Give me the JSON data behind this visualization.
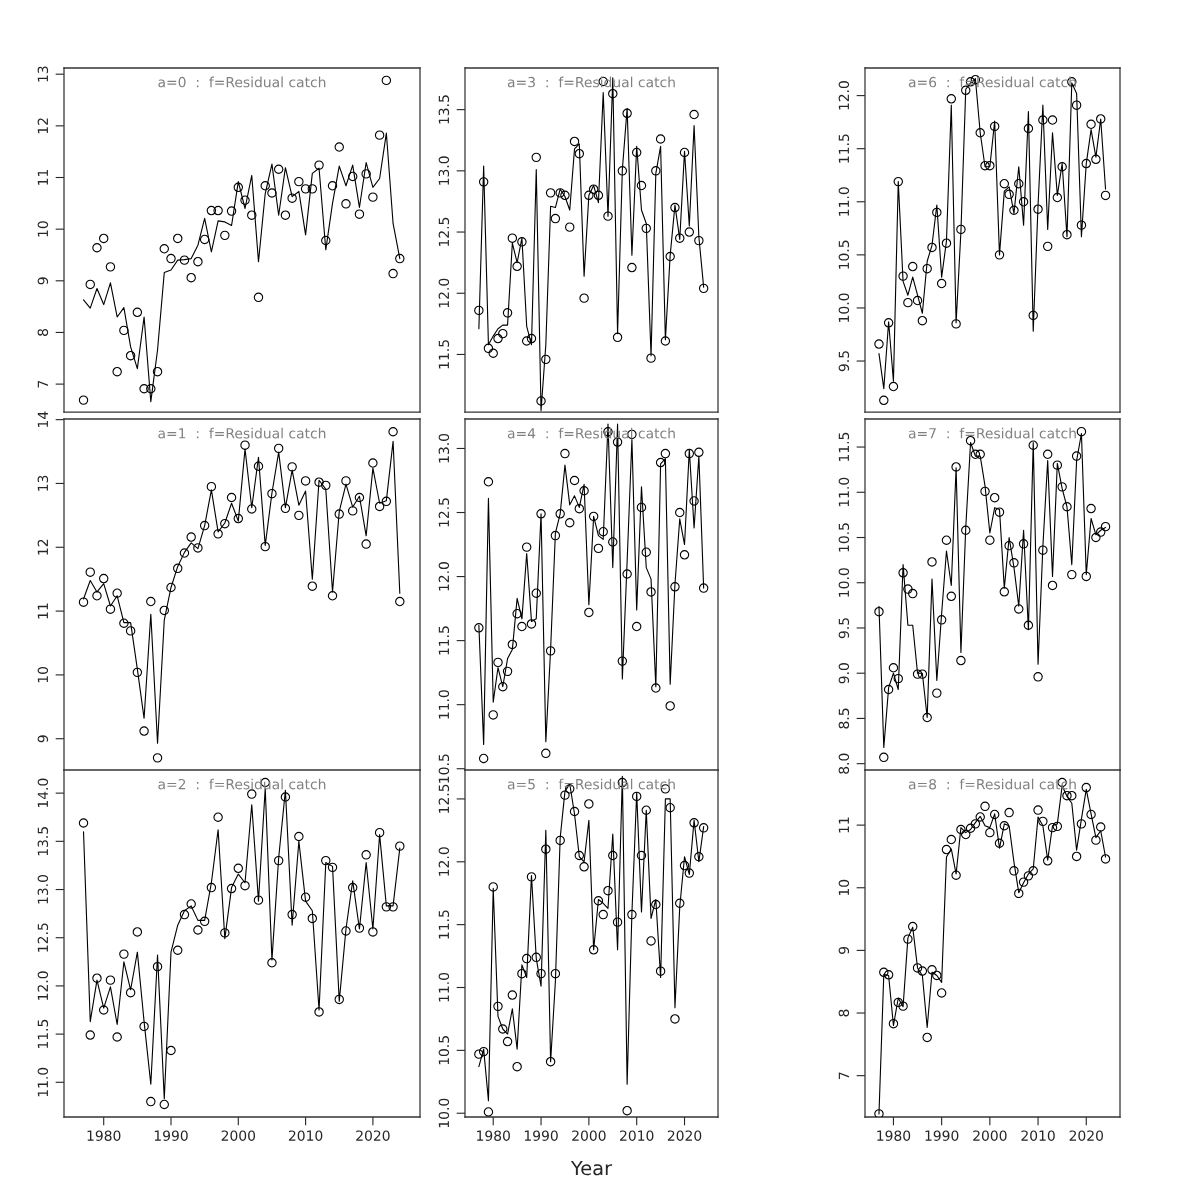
{
  "chart_data": [
    {
      "type": "line",
      "title": "a=0  :  f=Residual catch",
      "tick_labels": "y",
      "x": [
        1977,
        1978,
        1979,
        1980,
        1981,
        1982,
        1983,
        1984,
        1985,
        1986,
        1987,
        1988,
        1989,
        1990,
        1991,
        1992,
        1993,
        1994,
        1995,
        1996,
        1997,
        1998,
        1999,
        2000,
        2001,
        2002,
        2003,
        2004,
        2005,
        2006,
        2007,
        2008,
        2009,
        2010,
        2011,
        2012,
        2013,
        2014,
        2015,
        2016,
        2017,
        2018,
        2019,
        2020,
        2021,
        2022,
        2023,
        2024
      ],
      "xlim": [
        1974.1,
        2027.0
      ],
      "xticks": [
        1980,
        1990,
        2000,
        2010,
        2020
      ],
      "ylim": [
        6.46,
        13.12
      ],
      "yticks": [
        7,
        8,
        9,
        10,
        11,
        12,
        13
      ],
      "series": [
        {
          "type": "scatter",
          "marker": "circle",
          "color": "#000000",
          "values": [
            6.69,
            8.93,
            9.64,
            9.82,
            9.27,
            7.24,
            8.04,
            7.55,
            8.39,
            6.91,
            6.91,
            7.24,
            9.62,
            9.43,
            9.82,
            9.4,
            9.06,
            9.37,
            9.8,
            10.36,
            10.36,
            9.88,
            10.35,
            10.81,
            10.56,
            10.27,
            8.68,
            10.84,
            10.7,
            11.16,
            10.27,
            10.6,
            10.92,
            10.78,
            10.78,
            11.24,
            9.78,
            10.84,
            11.59,
            10.49,
            11.02,
            10.29,
            11.07,
            10.62,
            11.82,
            12.88,
            9.14,
            9.43
          ]
        },
        {
          "type": "line",
          "line_style": "solid",
          "color": "#000000",
          "values": [
            8.63,
            8.47,
            8.85,
            8.54,
            8.96,
            8.3,
            8.48,
            7.72,
            7.3,
            8.3,
            6.66,
            7.66,
            9.16,
            9.21,
            9.4,
            9.41,
            9.43,
            9.69,
            10.21,
            9.56,
            10.16,
            10.14,
            10.07,
            10.92,
            10.4,
            11.04,
            9.37,
            10.69,
            11.26,
            10.27,
            11.19,
            10.63,
            10.73,
            9.89,
            11.08,
            11.18,
            9.6,
            10.5,
            11.22,
            10.84,
            11.24,
            10.42,
            11.29,
            10.81,
            10.98,
            11.86,
            10.11,
            9.43
          ]
        }
      ]
    },
    {
      "type": "line",
      "title": "a=1  :  f=Residual catch",
      "tick_labels": "y",
      "x": [
        1977,
        1978,
        1979,
        1980,
        1981,
        1982,
        1983,
        1984,
        1985,
        1986,
        1987,
        1988,
        1989,
        1990,
        1991,
        1992,
        1993,
        1994,
        1995,
        1996,
        1997,
        1998,
        1999,
        2000,
        2001,
        2002,
        2003,
        2004,
        2005,
        2006,
        2007,
        2008,
        2009,
        2010,
        2011,
        2012,
        2013,
        2014,
        2015,
        2016,
        2017,
        2018,
        2019,
        2020,
        2021,
        2022,
        2023,
        2024
      ],
      "xlim": [
        1974.1,
        2027.0
      ],
      "xticks": [
        1980,
        1990,
        2000,
        2010,
        2020
      ],
      "ylim": [
        8.51,
        14.01
      ],
      "yticks": [
        9,
        10,
        11,
        12,
        13,
        14
      ],
      "series": [
        {
          "type": "scatter",
          "marker": "circle",
          "color": "#000000",
          "values": [
            11.14,
            11.61,
            11.24,
            11.51,
            11.03,
            11.28,
            10.81,
            10.69,
            10.04,
            9.12,
            11.15,
            8.7,
            11.01,
            11.37,
            11.67,
            11.91,
            12.16,
            11.99,
            12.34,
            12.95,
            12.21,
            12.37,
            12.78,
            12.45,
            13.6,
            12.6,
            13.27,
            12.01,
            12.84,
            13.55,
            12.61,
            13.26,
            12.5,
            13.04,
            11.39,
            13.02,
            12.97,
            11.24,
            12.52,
            13.04,
            12.57,
            12.78,
            12.05,
            13.32,
            12.64,
            12.72,
            13.81,
            11.15
          ]
        },
        {
          "type": "line",
          "line_style": "solid",
          "color": "#000000",
          "values": [
            11.19,
            11.48,
            11.3,
            11.43,
            11.08,
            11.24,
            10.82,
            10.82,
            10.09,
            9.32,
            10.95,
            8.93,
            10.86,
            11.37,
            11.7,
            11.92,
            12.07,
            11.98,
            12.34,
            12.9,
            12.24,
            12.38,
            12.69,
            12.41,
            13.54,
            12.62,
            13.41,
            12.03,
            12.85,
            13.49,
            12.62,
            13.21,
            12.66,
            12.88,
            11.5,
            13.05,
            12.91,
            11.3,
            12.56,
            12.99,
            12.63,
            12.8,
            12.18,
            13.24,
            12.69,
            12.73,
            13.66,
            11.28
          ]
        }
      ]
    },
    {
      "type": "line",
      "title": "a=2  :  f=Residual catch",
      "x": [
        1977,
        1978,
        1979,
        1980,
        1981,
        1982,
        1983,
        1984,
        1985,
        1986,
        1987,
        1988,
        1989,
        1990,
        1991,
        1992,
        1993,
        1994,
        1995,
        1996,
        1997,
        1998,
        1999,
        2000,
        2001,
        2002,
        2003,
        2004,
        2005,
        2006,
        2007,
        2008,
        2009,
        2010,
        2011,
        2012,
        2013,
        2014,
        2015,
        2016,
        2017,
        2018,
        2019,
        2020,
        2021,
        2022,
        2023,
        2024
      ],
      "xlim": [
        1974.1,
        2027.0
      ],
      "xticks": [
        1980,
        1990,
        2000,
        2010,
        2020
      ],
      "ylim": [
        10.64,
        14.24
      ],
      "yticks": [
        {
          "value": 11,
          "label": "11.0"
        },
        11.5,
        {
          "value": 12,
          "label": "12.0"
        },
        12.5,
        {
          "value": 13,
          "label": "13.0"
        },
        13.5,
        {
          "value": 14,
          "label": "14.0"
        }
      ],
      "series": [
        {
          "type": "scatter",
          "marker": "circle",
          "color": "#000000",
          "values": [
            13.69,
            11.49,
            12.08,
            11.75,
            12.06,
            11.47,
            12.33,
            11.93,
            12.56,
            11.58,
            10.8,
            12.2,
            10.77,
            11.33,
            12.37,
            12.74,
            12.85,
            12.58,
            12.67,
            13.02,
            13.75,
            12.55,
            13.01,
            13.22,
            13.04,
            13.99,
            12.89,
            14.11,
            12.24,
            13.3,
            13.96,
            12.74,
            13.55,
            12.92,
            12.7,
            11.73,
            13.3,
            13.23,
            11.86,
            12.57,
            13.02,
            12.6,
            13.36,
            12.56,
            13.59,
            12.82,
            12.82,
            13.45
          ]
        },
        {
          "type": "line",
          "line_style": "solid",
          "color": "#000000",
          "values": [
            13.6,
            11.63,
            12.06,
            11.77,
            11.99,
            11.6,
            12.25,
            11.96,
            12.35,
            11.63,
            10.98,
            12.32,
            10.83,
            12.35,
            12.63,
            12.78,
            12.83,
            12.68,
            12.68,
            13.07,
            13.62,
            12.49,
            13.02,
            13.16,
            13.07,
            13.88,
            12.88,
            14.05,
            12.27,
            13.33,
            14.03,
            12.63,
            13.5,
            12.88,
            12.78,
            11.75,
            13.28,
            13.24,
            11.84,
            12.59,
            13.09,
            12.59,
            13.28,
            12.59,
            13.57,
            12.83,
            12.83,
            13.43
          ]
        }
      ]
    },
    {
      "type": "line",
      "title": "a=3  :  f=Residual catch",
      "tick_labels": "y",
      "x": [
        1977,
        1978,
        1979,
        1980,
        1981,
        1982,
        1983,
        1984,
        1985,
        1986,
        1987,
        1988,
        1989,
        1990,
        1991,
        1992,
        1993,
        1994,
        1995,
        1996,
        1997,
        1998,
        1999,
        2000,
        2001,
        2002,
        2003,
        2004,
        2005,
        2006,
        2007,
        2008,
        2009,
        2010,
        2011,
        2012,
        2013,
        2014,
        2015,
        2016,
        2017,
        2018,
        2019,
        2020,
        2021,
        2022,
        2023,
        2024
      ],
      "xlim": [
        1974.1,
        2027.0
      ],
      "xticks": [
        1980,
        1990,
        2000,
        2010,
        2020
      ],
      "ylim": [
        11.03,
        13.84
      ],
      "yticks": [
        11.5,
        {
          "value": 12,
          "label": "12.0"
        },
        12.5,
        {
          "value": 13,
          "label": "13.0"
        },
        13.5
      ],
      "series": [
        {
          "type": "scatter",
          "marker": "circle",
          "color": "#000000",
          "values": [
            11.86,
            12.91,
            11.55,
            11.51,
            11.63,
            11.67,
            11.84,
            12.45,
            12.22,
            12.42,
            11.61,
            11.63,
            13.11,
            11.12,
            11.46,
            12.82,
            12.61,
            12.82,
            12.8,
            12.54,
            13.24,
            13.14,
            11.96,
            12.8,
            12.85,
            12.8,
            13.73,
            12.63,
            13.63,
            11.64,
            13.0,
            13.47,
            12.21,
            13.15,
            12.88,
            12.53,
            11.47,
            13.0,
            13.26,
            11.61,
            12.3,
            12.7,
            12.45,
            13.15,
            12.5,
            13.46,
            12.43,
            12.04
          ]
        },
        {
          "type": "line",
          "line_style": "solid",
          "color": "#000000",
          "values": [
            11.71,
            13.04,
            11.58,
            11.65,
            11.71,
            11.74,
            11.74,
            12.41,
            12.25,
            12.45,
            11.73,
            11.58,
            13.01,
            11.04,
            11.58,
            12.71,
            12.7,
            12.85,
            12.79,
            12.68,
            13.18,
            13.22,
            12.14,
            12.8,
            12.88,
            12.74,
            13.64,
            12.63,
            13.76,
            11.67,
            13.01,
            13.51,
            12.31,
            13.2,
            12.68,
            12.57,
            11.49,
            12.98,
            13.2,
            11.62,
            12.31,
            12.72,
            12.44,
            13.16,
            12.55,
            13.37,
            12.46,
            12.05
          ]
        }
      ]
    },
    {
      "type": "line",
      "title": "a=4  :  f=Residual catch",
      "tick_labels": "y",
      "x": [
        1977,
        1978,
        1979,
        1980,
        1981,
        1982,
        1983,
        1984,
        1985,
        1986,
        1987,
        1988,
        1989,
        1990,
        1991,
        1992,
        1993,
        1994,
        1995,
        1996,
        1997,
        1998,
        1999,
        2000,
        2001,
        2002,
        2003,
        2004,
        2005,
        2006,
        2007,
        2008,
        2009,
        2010,
        2011,
        2012,
        2013,
        2014,
        2015,
        2016,
        2017,
        2018,
        2019,
        2020,
        2021,
        2022,
        2023,
        2024
      ],
      "xlim": [
        1974.1,
        2027.0
      ],
      "xticks": [
        1980,
        1990,
        2000,
        2010,
        2020
      ],
      "ylim": [
        10.49,
        13.23
      ],
      "yticks": [
        10.5,
        {
          "value": 11,
          "label": "11.0"
        },
        11.5,
        {
          "value": 12,
          "label": "12.0"
        },
        12.5,
        {
          "value": 13,
          "label": "13.0"
        }
      ],
      "series": [
        {
          "type": "scatter",
          "marker": "circle",
          "color": "#000000",
          "values": [
            11.6,
            10.58,
            12.74,
            10.92,
            11.33,
            11.14,
            11.26,
            11.47,
            11.71,
            11.61,
            12.23,
            11.63,
            11.87,
            12.49,
            10.62,
            11.42,
            12.32,
            12.49,
            12.96,
            12.42,
            12.75,
            12.53,
            12.67,
            11.72,
            12.47,
            12.22,
            12.35,
            13.13,
            12.27,
            13.05,
            11.34,
            12.02,
            13.11,
            11.61,
            12.54,
            12.19,
            11.88,
            11.13,
            12.89,
            12.96,
            10.99,
            11.92,
            12.5,
            12.17,
            12.96,
            12.59,
            12.97,
            11.91
          ]
        },
        {
          "type": "line",
          "line_style": "solid",
          "color": "#000000",
          "values": [
            11.62,
            10.69,
            12.61,
            11.02,
            11.29,
            11.14,
            11.36,
            11.43,
            11.83,
            11.67,
            12.18,
            11.65,
            11.67,
            12.49,
            10.71,
            11.43,
            12.34,
            12.49,
            12.87,
            12.56,
            12.63,
            12.54,
            12.72,
            11.78,
            12.47,
            12.32,
            12.29,
            13.19,
            12.07,
            13.19,
            11.2,
            12.12,
            13.07,
            11.74,
            12.7,
            12.07,
            11.98,
            11.14,
            12.88,
            12.92,
            11.16,
            11.94,
            12.45,
            12.25,
            12.99,
            12.38,
            12.94,
            11.91
          ]
        }
      ]
    },
    {
      "type": "line",
      "title": "a=5  :  f=Residual catch",
      "xlabel": "Year",
      "x": [
        1977,
        1978,
        1979,
        1980,
        1981,
        1982,
        1983,
        1984,
        1985,
        1986,
        1987,
        1988,
        1989,
        1990,
        1991,
        1992,
        1993,
        1994,
        1995,
        1996,
        1997,
        1998,
        1999,
        2000,
        2001,
        2002,
        2003,
        2004,
        2005,
        2006,
        2007,
        2008,
        2009,
        2010,
        2011,
        2012,
        2013,
        2014,
        2015,
        2016,
        2017,
        2018,
        2019,
        2020,
        2021,
        2022,
        2023,
        2024
      ],
      "xlim": [
        1974.1,
        2027.0
      ],
      "xticks": [
        1980,
        1990,
        2000,
        2010,
        2020
      ],
      "ylim": [
        9.97,
        12.73
      ],
      "yticks": [
        {
          "value": 10,
          "label": "10.0"
        },
        10.5,
        {
          "value": 11,
          "label": "11.0"
        },
        11.5,
        {
          "value": 12,
          "label": "12.0"
        },
        12.5
      ],
      "series": [
        {
          "type": "scatter",
          "marker": "circle",
          "color": "#000000",
          "values": [
            10.47,
            10.49,
            10.01,
            11.8,
            10.85,
            10.67,
            10.57,
            10.94,
            10.37,
            11.11,
            11.23,
            11.88,
            11.24,
            11.11,
            12.1,
            10.41,
            11.11,
            12.17,
            12.53,
            12.58,
            12.4,
            12.05,
            11.96,
            12.46,
            11.3,
            11.69,
            11.58,
            11.77,
            12.05,
            11.52,
            12.63,
            10.02,
            11.58,
            12.52,
            12.05,
            12.41,
            11.37,
            11.66,
            11.13,
            12.58,
            12.43,
            10.75,
            11.67,
            11.97,
            11.91,
            12.31,
            12.04,
            12.27
          ]
        },
        {
          "type": "line",
          "line_style": "solid",
          "color": "#000000",
          "values": [
            10.37,
            10.51,
            10.1,
            11.79,
            10.77,
            10.67,
            10.63,
            10.83,
            10.51,
            11.18,
            11.08,
            11.89,
            11.23,
            11.01,
            12.25,
            10.41,
            11.05,
            12.19,
            12.56,
            12.62,
            12.38,
            12.04,
            12.0,
            12.33,
            11.3,
            11.7,
            11.67,
            11.63,
            12.22,
            11.3,
            12.68,
            10.23,
            11.59,
            12.55,
            11.6,
            12.41,
            11.55,
            11.7,
            11.08,
            12.5,
            12.5,
            10.84,
            11.64,
            12.04,
            11.9,
            12.33,
            12.0,
            12.28
          ]
        }
      ]
    },
    {
      "type": "line",
      "title": "a=6  :  f=Residual catch",
      "tick_labels": "y",
      "x": [
        1977,
        1978,
        1979,
        1980,
        1981,
        1982,
        1983,
        1984,
        1985,
        1986,
        1987,
        1988,
        1989,
        1990,
        1991,
        1992,
        1993,
        1994,
        1995,
        1996,
        1997,
        1998,
        1999,
        2000,
        2001,
        2002,
        2003,
        2004,
        2005,
        2006,
        2007,
        2008,
        2009,
        2010,
        2011,
        2012,
        2013,
        2014,
        2015,
        2016,
        2017,
        2018,
        2019,
        2020,
        2021,
        2022,
        2023,
        2024
      ],
      "xlim": [
        1974.1,
        2027.0
      ],
      "xticks": [
        1980,
        1990,
        2000,
        2010,
        2020
      ],
      "ylim": [
        9.02,
        12.26
      ],
      "yticks": [
        9.5,
        {
          "value": 10,
          "label": "10.0"
        },
        10.5,
        {
          "value": 11,
          "label": "11.0"
        },
        11.5,
        {
          "value": 12,
          "label": "12.0"
        }
      ],
      "series": [
        {
          "type": "scatter",
          "marker": "circle",
          "color": "#000000",
          "values": [
            9.66,
            9.13,
            9.86,
            9.26,
            11.19,
            10.3,
            10.05,
            10.39,
            10.07,
            9.88,
            10.37,
            10.57,
            10.9,
            10.23,
            10.61,
            11.97,
            9.85,
            10.74,
            12.05,
            12.13,
            12.15,
            11.65,
            11.34,
            11.34,
            11.71,
            10.5,
            11.17,
            11.07,
            10.92,
            11.17,
            11.0,
            11.69,
            9.93,
            10.93,
            11.77,
            10.58,
            11.77,
            11.04,
            11.33,
            10.69,
            12.13,
            11.91,
            10.78,
            11.36,
            11.73,
            11.4,
            11.78,
            11.06
          ]
        },
        {
          "type": "line",
          "line_style": "solid",
          "color": "#000000",
          "values": [
            9.57,
            9.24,
            9.87,
            9.31,
            11.19,
            10.25,
            10.12,
            10.29,
            10.12,
            9.95,
            10.44,
            10.59,
            10.97,
            10.29,
            10.63,
            11.91,
            9.86,
            10.72,
            12.06,
            12.12,
            12.16,
            11.65,
            11.33,
            11.33,
            11.76,
            10.5,
            11.1,
            11.14,
            10.89,
            11.33,
            10.78,
            11.85,
            9.78,
            10.97,
            11.91,
            10.74,
            11.65,
            11.06,
            11.36,
            10.67,
            12.12,
            12.02,
            10.67,
            11.36,
            11.68,
            11.42,
            11.78,
            11.12
          ]
        }
      ]
    },
    {
      "type": "line",
      "title": "a=7  :  f=Residual catch",
      "tick_labels": "y",
      "x": [
        1977,
        1978,
        1979,
        1980,
        1981,
        1982,
        1983,
        1984,
        1985,
        1986,
        1987,
        1988,
        1989,
        1990,
        1991,
        1992,
        1993,
        1994,
        1995,
        1996,
        1997,
        1998,
        1999,
        2000,
        2001,
        2002,
        2003,
        2004,
        2005,
        2006,
        2007,
        2008,
        2009,
        2010,
        2011,
        2012,
        2013,
        2014,
        2015,
        2016,
        2017,
        2018,
        2019,
        2020,
        2021,
        2022,
        2023,
        2024
      ],
      "xlim": [
        1974.1,
        2027.0
      ],
      "xticks": [
        1980,
        1990,
        2000,
        2010,
        2020
      ],
      "ylim": [
        7.93,
        11.81
      ],
      "yticks": [
        {
          "value": 8,
          "label": "8.0"
        },
        8.5,
        {
          "value": 9,
          "label": "9.0"
        },
        9.5,
        {
          "value": 10,
          "label": "10.0"
        },
        10.5,
        {
          "value": 11,
          "label": "11.0"
        },
        11.5
      ],
      "series": [
        {
          "type": "scatter",
          "marker": "circle",
          "color": "#000000",
          "values": [
            9.68,
            8.07,
            8.82,
            9.06,
            8.94,
            10.11,
            9.93,
            9.88,
            8.99,
            8.99,
            8.51,
            10.23,
            8.78,
            9.59,
            10.47,
            9.85,
            11.28,
            9.14,
            10.58,
            11.57,
            11.42,
            11.42,
            11.01,
            10.47,
            10.94,
            10.78,
            9.9,
            10.41,
            10.22,
            9.71,
            10.43,
            9.53,
            11.52,
            8.96,
            10.36,
            11.42,
            9.97,
            11.3,
            11.06,
            10.84,
            10.09,
            11.4,
            11.67,
            10.07,
            10.82,
            10.5,
            10.56,
            10.62
          ]
        },
        {
          "type": "line",
          "line_style": "solid",
          "color": "#000000",
          "values": [
            9.74,
            8.18,
            8.84,
            9.0,
            8.82,
            10.2,
            9.53,
            9.53,
            9.0,
            9.0,
            8.51,
            10.04,
            8.92,
            9.66,
            10.35,
            9.97,
            11.27,
            9.23,
            10.61,
            11.55,
            11.4,
            11.4,
            11.07,
            10.55,
            10.83,
            10.81,
            9.94,
            10.5,
            10.17,
            9.74,
            10.58,
            9.48,
            11.55,
            9.1,
            10.4,
            11.35,
            10.07,
            11.32,
            11.04,
            10.84,
            10.2,
            11.35,
            11.65,
            10.09,
            10.71,
            10.53,
            10.58,
            10.61
          ]
        }
      ]
    },
    {
      "type": "line",
      "title": "a=8  :  f=Residual catch",
      "x": [
        1977,
        1978,
        1979,
        1980,
        1981,
        1982,
        1983,
        1984,
        1985,
        1986,
        1987,
        1988,
        1989,
        1990,
        1991,
        1992,
        1993,
        1994,
        1995,
        1996,
        1997,
        1998,
        1999,
        2000,
        2001,
        2002,
        2003,
        2004,
        2005,
        2006,
        2007,
        2008,
        2009,
        2010,
        2011,
        2012,
        2013,
        2014,
        2015,
        2016,
        2017,
        2018,
        2019,
        2020,
        2021,
        2022,
        2023,
        2024
      ],
      "xlim": [
        1974.1,
        2027.0
      ],
      "xticks": [
        1980,
        1990,
        2000,
        2010,
        2020
      ],
      "ylim": [
        6.34,
        11.88
      ],
      "yticks": [
        7,
        8,
        9,
        10,
        11
      ],
      "series": [
        {
          "type": "scatter",
          "marker": "circle",
          "color": "#000000",
          "values": [
            6.39,
            8.65,
            8.61,
            7.83,
            8.17,
            8.11,
            9.18,
            9.38,
            8.72,
            8.67,
            7.61,
            8.69,
            8.6,
            8.32,
            10.61,
            10.77,
            10.2,
            10.93,
            10.85,
            10.95,
            11.02,
            11.13,
            11.3,
            10.88,
            11.17,
            10.71,
            10.99,
            11.2,
            10.27,
            9.91,
            10.09,
            10.19,
            10.27,
            11.24,
            11.06,
            10.43,
            10.96,
            10.98,
            11.68,
            11.47,
            11.47,
            10.5,
            11.02,
            11.6,
            11.17,
            10.76,
            10.97,
            10.46
          ]
        },
        {
          "type": "line",
          "line_style": "solid",
          "color": "#000000",
          "values": [
            6.39,
            8.62,
            8.6,
            7.8,
            8.24,
            8.1,
            9.2,
            9.37,
            8.72,
            8.6,
            7.77,
            8.65,
            8.6,
            8.49,
            10.49,
            10.62,
            10.22,
            10.96,
            10.88,
            10.93,
            11.04,
            11.14,
            10.99,
            10.96,
            11.18,
            10.63,
            11.02,
            10.99,
            10.41,
            9.92,
            10.08,
            10.22,
            10.3,
            11.13,
            10.99,
            10.44,
            10.99,
            11.02,
            11.63,
            11.46,
            11.35,
            10.6,
            11.1,
            11.57,
            11.18,
            10.8,
            10.91,
            10.49
          ]
        }
      ]
    }
  ]
}
